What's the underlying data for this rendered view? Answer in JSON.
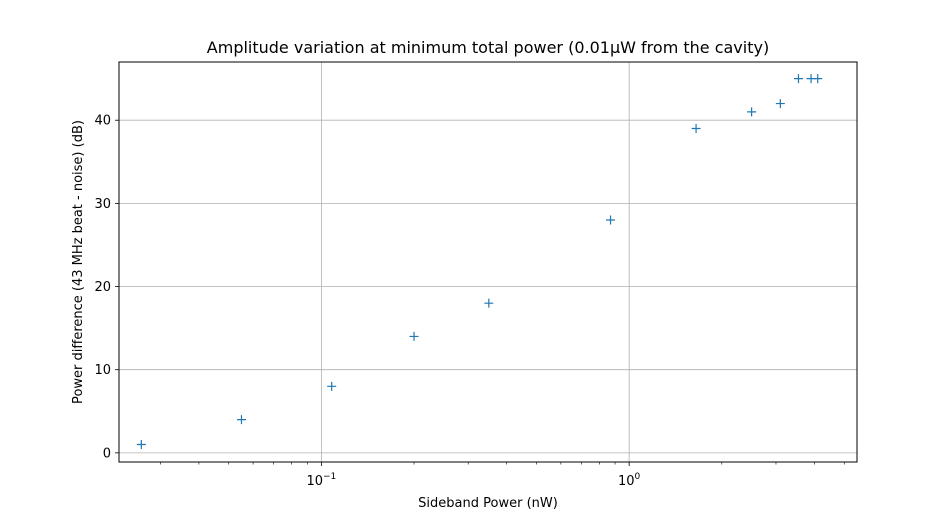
{
  "chart_data": {
    "type": "scatter",
    "title": "Amplitude variation at minimum total power (0.01μW from the cavity)",
    "xlabel": "Sideband Power (nW)",
    "ylabel": "Power difference (43 MHz beat - noise) (dB)",
    "xscale": "log",
    "xlim": [
      0.022,
      5.5
    ],
    "ylim": [
      -1.1,
      47.0
    ],
    "xticks": [
      {
        "value": 0.1,
        "base": "10",
        "exp": "−1"
      },
      {
        "value": 1,
        "base": "10",
        "exp": "0"
      }
    ],
    "yticks": [
      0,
      10,
      20,
      30,
      40
    ],
    "grid": true,
    "marker": "+",
    "color": "#1f77b4",
    "points": [
      {
        "x": 0.026,
        "y": 1
      },
      {
        "x": 0.055,
        "y": 4
      },
      {
        "x": 0.108,
        "y": 8
      },
      {
        "x": 0.2,
        "y": 14
      },
      {
        "x": 0.35,
        "y": 18
      },
      {
        "x": 0.87,
        "y": 28
      },
      {
        "x": 1.65,
        "y": 39
      },
      {
        "x": 2.5,
        "y": 41
      },
      {
        "x": 3.1,
        "y": 42
      },
      {
        "x": 3.55,
        "y": 45
      },
      {
        "x": 3.9,
        "y": 45
      },
      {
        "x": 4.1,
        "y": 45
      }
    ]
  }
}
